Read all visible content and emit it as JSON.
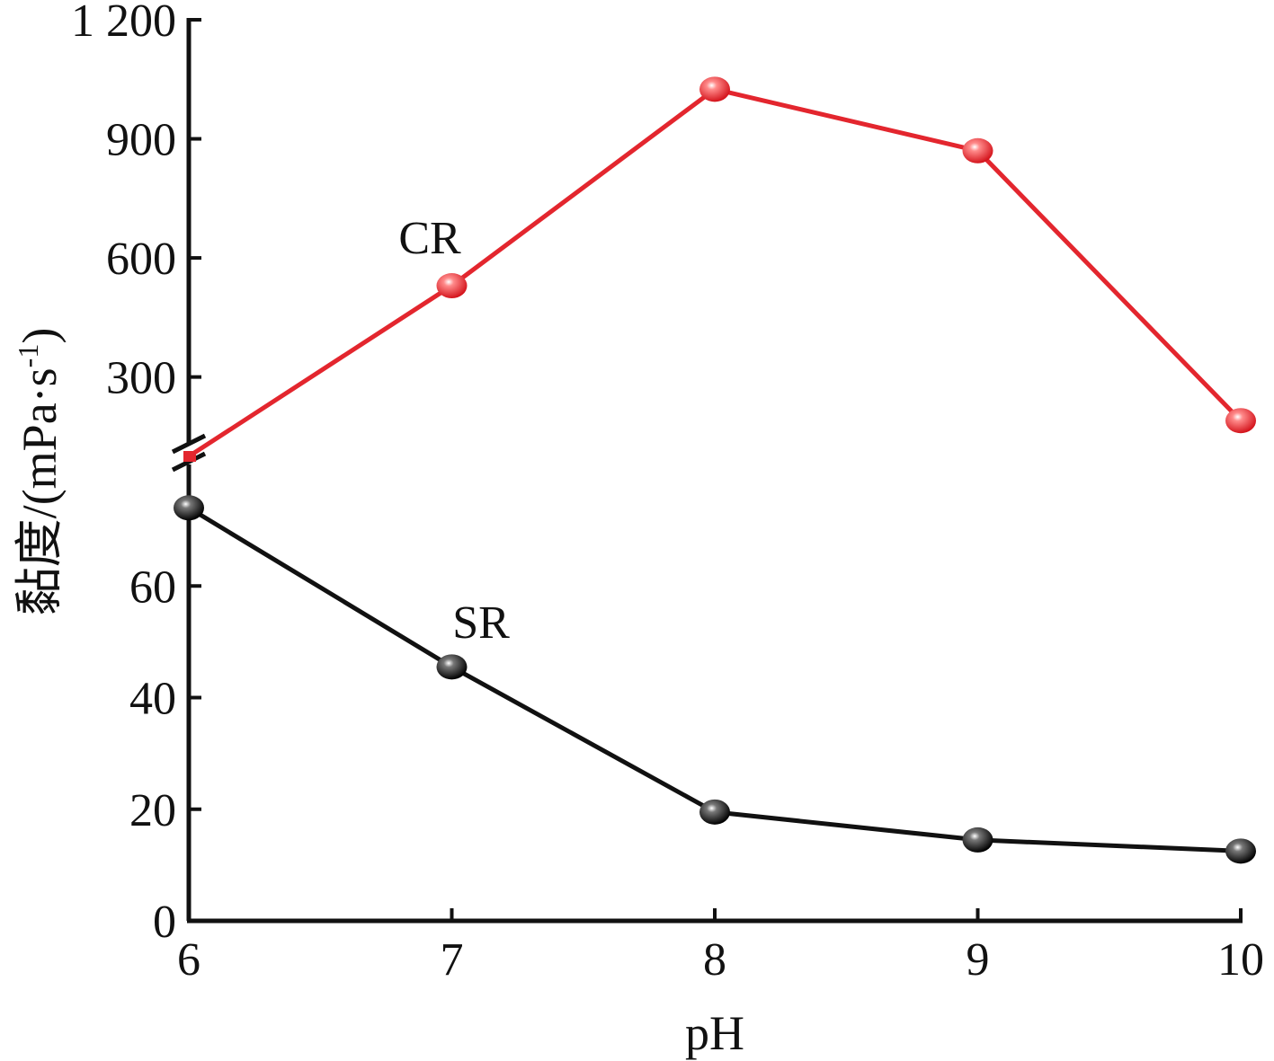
{
  "chart_data": {
    "type": "line",
    "title": "",
    "xlabel": "pH",
    "ylabel": "黏度/(mPa·s",
    "ylabel_superscript": "-1",
    "ylabel_suffix": ")",
    "x": [
      6,
      7,
      8,
      9,
      10
    ],
    "xlim": [
      6,
      10
    ],
    "x_ticks": [
      "6",
      "7",
      "8",
      "9",
      "10"
    ],
    "y_axis_break": true,
    "lower_ylim": [
      0,
      80
    ],
    "lower_y_ticks": [
      {
        "value": 0,
        "label": "0"
      },
      {
        "value": 20,
        "label": "20"
      },
      {
        "value": 40,
        "label": "40"
      },
      {
        "value": 60,
        "label": "60"
      }
    ],
    "upper_ylim": [
      100,
      1200
    ],
    "upper_y_ticks": [
      {
        "value": 300,
        "label": "300"
      },
      {
        "value": 600,
        "label": "600"
      },
      {
        "value": 900,
        "label": "900"
      },
      {
        "value": 1200,
        "label": "1 200"
      }
    ],
    "grid": false,
    "series": [
      {
        "name": "CR",
        "color": "#e3262e",
        "segment": "upper",
        "values": [
          100,
          530,
          1025,
          870,
          190
        ]
      },
      {
        "name": "SR",
        "color": "#111111",
        "segment": "lower",
        "values": [
          74,
          45.5,
          19.5,
          14.5,
          12.5
        ]
      }
    ]
  }
}
